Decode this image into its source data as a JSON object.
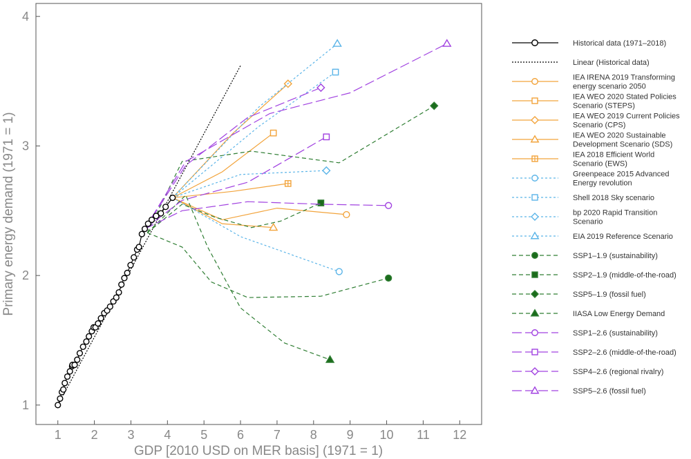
{
  "chart_data": {
    "type": "line",
    "title": "",
    "xlabel": "GDP [2010 USD on MER basis] (1971 = 1)",
    "ylabel": "Primary energy demand (1971 = 1)",
    "xlim": [
      0.4,
      12.6
    ],
    "ylim": [
      0.85,
      4.1
    ],
    "xticks": [
      1,
      2,
      3,
      4,
      5,
      6,
      7,
      8,
      9,
      10,
      11,
      12
    ],
    "yticks": [
      1,
      2,
      3,
      4
    ],
    "grid": false,
    "legend_position": "right",
    "series": [
      {
        "name": "Historical data (1971–2018)",
        "color": "#000000",
        "dash": "",
        "marker": "circle",
        "marker_fill": "none",
        "marker_on": "all",
        "points": [
          [
            1.0,
            1.0
          ],
          [
            1.06,
            1.05
          ],
          [
            1.11,
            1.1
          ],
          [
            1.15,
            1.12
          ],
          [
            1.19,
            1.17
          ],
          [
            1.26,
            1.22
          ],
          [
            1.33,
            1.26
          ],
          [
            1.39,
            1.3
          ],
          [
            1.4,
            1.31
          ],
          [
            1.46,
            1.31
          ],
          [
            1.53,
            1.35
          ],
          [
            1.6,
            1.4
          ],
          [
            1.69,
            1.45
          ],
          [
            1.78,
            1.49
          ],
          [
            1.85,
            1.53
          ],
          [
            1.93,
            1.57
          ],
          [
            1.98,
            1.6
          ],
          [
            2.03,
            1.6
          ],
          [
            2.1,
            1.63
          ],
          [
            2.18,
            1.67
          ],
          [
            2.27,
            1.71
          ],
          [
            2.35,
            1.73
          ],
          [
            2.43,
            1.76
          ],
          [
            2.52,
            1.8
          ],
          [
            2.6,
            1.83
          ],
          [
            2.67,
            1.87
          ],
          [
            2.74,
            1.93
          ],
          [
            2.82,
            1.98
          ],
          [
            2.9,
            2.02
          ],
          [
            2.99,
            2.08
          ],
          [
            3.08,
            2.14
          ],
          [
            3.17,
            2.2
          ],
          [
            3.22,
            2.22
          ],
          [
            3.3,
            2.32
          ],
          [
            3.38,
            2.36
          ],
          [
            3.47,
            2.4
          ],
          [
            3.57,
            2.43
          ],
          [
            3.69,
            2.46
          ],
          [
            3.82,
            2.48
          ],
          [
            3.95,
            2.53
          ],
          [
            4.14,
            2.6
          ]
        ]
      },
      {
        "name": "Linear (Historical data)",
        "color": "#000000",
        "dash": "2,2",
        "marker": "none",
        "points": [
          [
            1.0,
            1.0
          ],
          [
            6.0,
            3.62
          ]
        ]
      },
      {
        "name": "IEA IRENA 2019 Transforming energy scenario 2050",
        "color": "#f2a33a",
        "dash": "",
        "marker": "circle",
        "marker_fill": "none",
        "marker_on": "last",
        "points": [
          [
            4.14,
            2.6
          ],
          [
            5.5,
            2.43
          ],
          [
            7.0,
            2.52
          ],
          [
            8.9,
            2.47
          ]
        ]
      },
      {
        "name": "IEA WEO 2020 Stated Policies Scenario (STEPS)",
        "color": "#f2a33a",
        "dash": "",
        "marker": "square",
        "marker_fill": "none",
        "marker_on": "last",
        "points": [
          [
            4.14,
            2.6
          ],
          [
            5.5,
            2.8
          ],
          [
            6.9,
            3.1
          ]
        ]
      },
      {
        "name": "IEA WEO 2019 Current Policies Scenario (CPS)",
        "color": "#f2a33a",
        "dash": "",
        "marker": "diamond",
        "marker_fill": "none",
        "marker_on": "last",
        "points": [
          [
            4.14,
            2.6
          ],
          [
            5.8,
            3.1
          ],
          [
            7.3,
            3.48
          ]
        ]
      },
      {
        "name": "IEA WEO 2020 Sustainable Development Scenario (SDS)",
        "color": "#f2a33a",
        "dash": "",
        "marker": "triangle",
        "marker_fill": "none",
        "marker_on": "last",
        "points": [
          [
            4.14,
            2.6
          ],
          [
            5.5,
            2.4
          ],
          [
            6.9,
            2.37
          ]
        ]
      },
      {
        "name": "IEA 2018 Efficient World Scenario (EWS)",
        "color": "#f2a33a",
        "dash": "",
        "marker": "squareplus",
        "marker_fill": "none",
        "marker_on": "last",
        "points": [
          [
            4.14,
            2.6
          ],
          [
            5.8,
            2.65
          ],
          [
            7.3,
            2.71
          ]
        ]
      },
      {
        "name": "Greenpeace 2015 Advanced Energy revolution",
        "color": "#5ab4e8",
        "dash": "3,3",
        "marker": "circle",
        "marker_fill": "none",
        "marker_on": "last",
        "points": [
          [
            4.14,
            2.6
          ],
          [
            6.0,
            2.3
          ],
          [
            8.7,
            2.03
          ]
        ]
      },
      {
        "name": "Shell 2018 Sky scenario",
        "color": "#5ab4e8",
        "dash": "3,3",
        "marker": "square",
        "marker_fill": "none",
        "marker_on": "last",
        "points": [
          [
            4.14,
            2.6
          ],
          [
            6.5,
            3.15
          ],
          [
            8.6,
            3.57
          ]
        ]
      },
      {
        "name": "bp 2020 Rapid Transition Scenario",
        "color": "#5ab4e8",
        "dash": "3,3",
        "marker": "diamond",
        "marker_fill": "none",
        "marker_on": "last",
        "points": [
          [
            4.14,
            2.6
          ],
          [
            6.0,
            2.78
          ],
          [
            8.35,
            2.81
          ]
        ]
      },
      {
        "name": "EIA 2019 Reference Scenario",
        "color": "#5ab4e8",
        "dash": "3,3",
        "marker": "triangle",
        "marker_fill": "none",
        "marker_on": "last",
        "points": [
          [
            4.14,
            2.6
          ],
          [
            6.5,
            3.3
          ],
          [
            8.65,
            3.79
          ]
        ]
      },
      {
        "name": "SSP1–1.9 (sustainability)",
        "color": "#2e7d32",
        "dash": "6,4",
        "marker": "circle",
        "marker_fill": "#1b6b1b",
        "marker_on": "last",
        "points": [
          [
            3.45,
            2.33
          ],
          [
            4.4,
            2.22
          ],
          [
            5.2,
            1.95
          ],
          [
            6.2,
            1.83
          ],
          [
            8.2,
            1.84
          ],
          [
            10.05,
            1.98
          ]
        ]
      },
      {
        "name": "SSP2–1.9 (middle-of-the-road)",
        "color": "#2e7d32",
        "dash": "6,4",
        "marker": "square",
        "marker_fill": "#1b6b1b",
        "marker_on": "last",
        "points": [
          [
            3.45,
            2.33
          ],
          [
            4.4,
            2.55
          ],
          [
            5.3,
            2.45
          ],
          [
            6.3,
            2.37
          ],
          [
            7.1,
            2.42
          ],
          [
            8.2,
            2.56
          ]
        ]
      },
      {
        "name": "SSP5–1.9 (fossil fuel)",
        "color": "#2e7d32",
        "dash": "6,4",
        "marker": "diamond",
        "marker_fill": "#1b6b1b",
        "marker_on": "last",
        "points": [
          [
            3.45,
            2.33
          ],
          [
            4.4,
            2.88
          ],
          [
            6.3,
            2.96
          ],
          [
            8.7,
            2.87
          ],
          [
            11.3,
            3.31
          ]
        ]
      },
      {
        "name": "IIASA Low Energy Demand",
        "color": "#2e7d32",
        "dash": "6,4",
        "marker": "triangle",
        "marker_fill": "#1b6b1b",
        "marker_on": "last",
        "points": [
          [
            3.45,
            2.33
          ],
          [
            4.5,
            2.62
          ],
          [
            5.1,
            2.22
          ],
          [
            6.0,
            1.75
          ],
          [
            7.2,
            1.48
          ],
          [
            8.45,
            1.35
          ]
        ]
      },
      {
        "name": "SSP1–2.6 (sustainability)",
        "color": "#a040e0",
        "dash": "14,5",
        "marker": "circle",
        "marker_fill": "none",
        "marker_on": "last",
        "points": [
          [
            3.38,
            2.36
          ],
          [
            4.4,
            2.5
          ],
          [
            6.2,
            2.57
          ],
          [
            8.2,
            2.55
          ],
          [
            10.05,
            2.54
          ]
        ]
      },
      {
        "name": "SSP2–2.6 (middle-of-the-road)",
        "color": "#a040e0",
        "dash": "14,5",
        "marker": "square",
        "marker_fill": "none",
        "marker_on": "last",
        "points": [
          [
            3.38,
            2.36
          ],
          [
            4.4,
            2.58
          ],
          [
            6.2,
            2.72
          ],
          [
            8.35,
            3.07
          ]
        ]
      },
      {
        "name": "SSP4–2.6 (regional rivalry)",
        "color": "#a040e0",
        "dash": "14,5",
        "marker": "diamond",
        "marker_fill": "none",
        "marker_on": "last",
        "points": [
          [
            3.38,
            2.36
          ],
          [
            4.5,
            2.85
          ],
          [
            6.2,
            3.22
          ],
          [
            8.2,
            3.45
          ]
        ]
      },
      {
        "name": "SSP5–2.6 (fossil fuel)",
        "color": "#a040e0",
        "dash": "14,5",
        "marker": "triangle",
        "marker_fill": "none",
        "marker_on": "last",
        "points": [
          [
            3.38,
            2.36
          ],
          [
            4.5,
            2.88
          ],
          [
            6.8,
            3.25
          ],
          [
            9.0,
            3.41
          ],
          [
            11.65,
            3.79
          ]
        ]
      }
    ]
  }
}
